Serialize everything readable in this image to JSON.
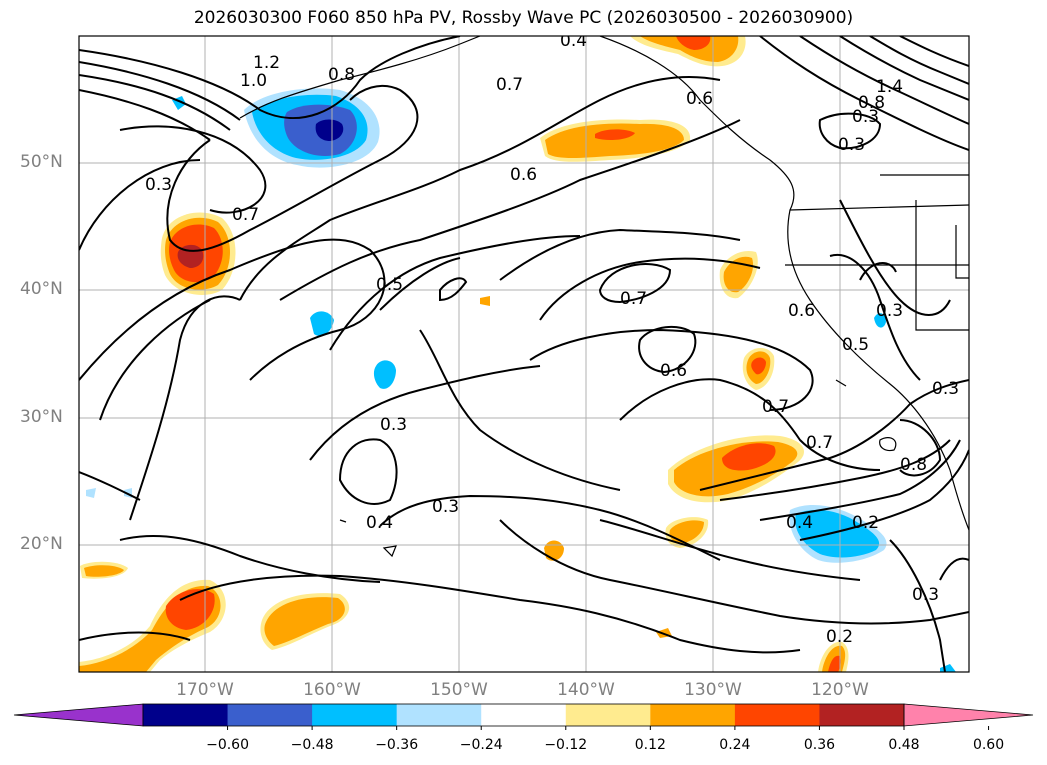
{
  "title": "2026030300 F060 850 hPa PV, Rossby Wave PC (2026030500 - 2026030900)",
  "map": {
    "lat_labels": [
      "50°N",
      "40°N",
      "30°N",
      "20°N"
    ],
    "lon_labels": [
      "170°W",
      "160°W",
      "150°W",
      "140°W",
      "130°W",
      "120°W"
    ],
    "contour_labels": [
      {
        "text": "1.2"
      },
      {
        "text": "1.0"
      },
      {
        "text": "0.8"
      },
      {
        "text": "0.4"
      },
      {
        "text": "0.7"
      },
      {
        "text": "0.6"
      },
      {
        "text": "1.4"
      },
      {
        "text": "0.8"
      },
      {
        "text": "0.3"
      },
      {
        "text": "0.3"
      },
      {
        "text": "0.7"
      },
      {
        "text": "0.6"
      },
      {
        "text": "0.5"
      },
      {
        "text": "0.7"
      },
      {
        "text": "0.6"
      },
      {
        "text": "0.5"
      },
      {
        "text": "0.3"
      },
      {
        "text": "0.6"
      },
      {
        "text": "0.3"
      },
      {
        "text": "0.7"
      },
      {
        "text": "0.3"
      },
      {
        "text": "0.7"
      },
      {
        "text": "0.8"
      },
      {
        "text": "0.4"
      },
      {
        "text": "0.3"
      },
      {
        "text": "0.4"
      },
      {
        "text": "0.2"
      },
      {
        "text": "0.3"
      },
      {
        "text": "0.2"
      }
    ]
  },
  "colorbar": {
    "colors": [
      "#9932cc",
      "#00008b",
      "#3a5fcd",
      "#00bfff",
      "#b0e2ff",
      "#ffffff",
      "#ffeb8f",
      "#ffa500",
      "#ff4500",
      "#b22222",
      "#ff82ab"
    ],
    "ticks": [
      "−0.60",
      "−0.48",
      "−0.36",
      "−0.24",
      "−0.12",
      "0.12",
      "0.24",
      "0.36",
      "0.48",
      "0.60"
    ]
  }
}
